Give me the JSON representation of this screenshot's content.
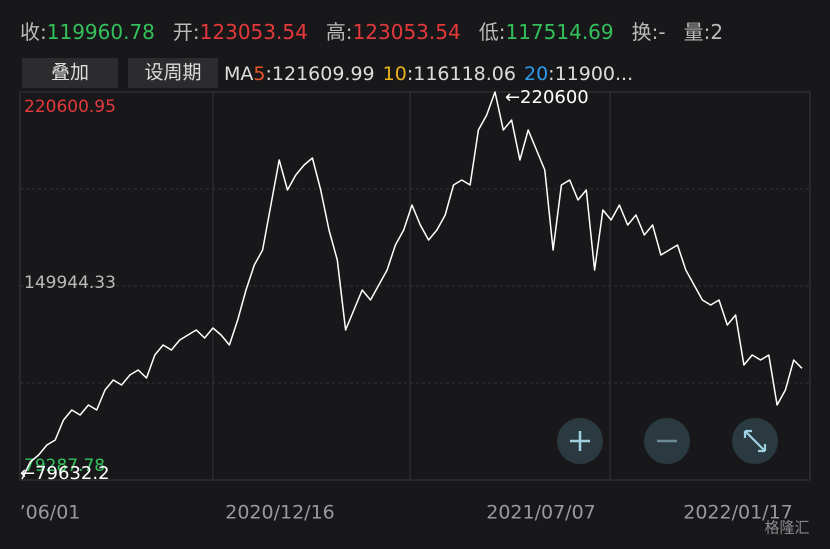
{
  "header": [
    {
      "label": "收:",
      "value": "119960.78",
      "color": "#34c15c"
    },
    {
      "label": "开:",
      "value": "123053.54",
      "color": "#e4393c"
    },
    {
      "label": "高:",
      "value": "123053.54",
      "color": "#e4393c"
    },
    {
      "label": "低:",
      "value": "117514.69",
      "color": "#34c15c"
    },
    {
      "label": "换:",
      "value": "-",
      "color": "#bbbbbb"
    },
    {
      "label": "量:",
      "value": "2",
      "color": "#bbbbbb"
    }
  ],
  "buttons": [
    "叠加",
    "设周期"
  ],
  "ma": {
    "prefix": "MA",
    "items": [
      {
        "period": "5",
        "value": ":121609.99",
        "color": "#e8552b"
      },
      {
        "period": "10",
        "value": ":116118.06",
        "color": "#e8b21c"
      },
      {
        "period": "20",
        "value": ":11900...",
        "color": "#2f9be6"
      }
    ]
  },
  "watermark": "格隆汇",
  "chart_data": {
    "type": "line",
    "color": "#ffffff",
    "values": [
      79632.2,
      85847,
      88396,
      92038,
      93859,
      101143,
      104785,
      102964,
      106606,
      104785,
      112069,
      115711,
      113890,
      117532,
      119353,
      116440,
      124816,
      128458,
      126637,
      130279,
      132100,
      133921,
      131008,
      134650,
      132100,
      128458,
      137563,
      148489,
      157594,
      163057,
      179446,
      195835,
      184909,
      190372,
      194014,
      196564,
      184909,
      170341,
      159415,
      133921,
      141205,
      148489,
      144847,
      150310,
      155773,
      164878,
      170341,
      179446,
      172162,
      166699,
      170341,
      175804,
      186730,
      188551,
      186730,
      206761,
      212224,
      220600,
      206761,
      210403,
      195835,
      206761,
      199477,
      192193,
      163057,
      186730,
      188551,
      181267,
      184909,
      155773,
      177625,
      173983,
      179446,
      172162,
      175804,
      168520,
      172162,
      161236,
      163057,
      164878,
      155773,
      150310,
      144847,
      143026,
      144847,
      135742,
      139384,
      121174,
      124816,
      122995,
      124816,
      106606,
      112069,
      122995,
      119960.78
    ],
    "ylim": [
      79287.78,
      220600.95
    ],
    "yticks": [
      220600.95,
      149944.33,
      79287.78
    ],
    "ytick_colors": [
      "#e4393c",
      "#bbbbbb",
      "#34c15c"
    ],
    "x_labels": [
      "’06/01",
      "2020/12/16",
      "2021/07/07",
      "2022/01/17"
    ],
    "annotations": {
      "max": "←220600",
      "min": "←79632.2"
    }
  }
}
